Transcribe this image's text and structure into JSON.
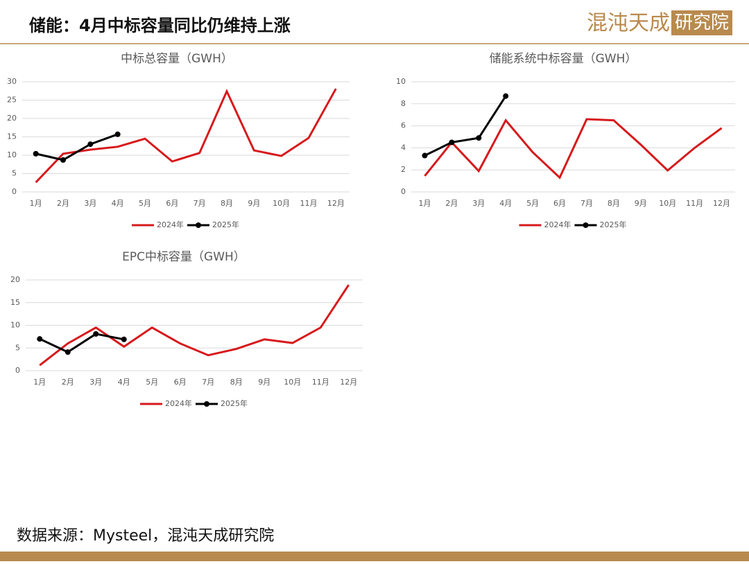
{
  "header": {
    "title": "储能：4月中标容量同比仍维持上涨",
    "logo": "混沌天成",
    "logo_box": "研究院"
  },
  "source": "数据来源：Mysteel，混沌天成研究院",
  "chart_data": [
    {
      "type": "line",
      "title": "中标总容量（GWH）",
      "categories": [
        "1月",
        "2月",
        "3月",
        "4月",
        "5月",
        "6月",
        "7月",
        "8月",
        "9月",
        "10月",
        "11月",
        "12月"
      ],
      "series": [
        {
          "name": "2024年",
          "color": "#d7191c",
          "values": [
            2.6,
            10.4,
            11.5,
            12.3,
            14.5,
            8.3,
            10.6,
            27.4,
            11.3,
            9.8,
            14.7,
            28.1
          ]
        },
        {
          "name": "2025年",
          "color": "#000000",
          "values": [
            10.4,
            8.7,
            13,
            15.7,
            null,
            null,
            null,
            null,
            null,
            null,
            null,
            null
          ]
        }
      ],
      "ylim": [
        0,
        30
      ],
      "yticks": [
        0,
        5,
        10,
        15,
        20,
        25,
        30
      ],
      "grid": true,
      "legend": "bottom"
    },
    {
      "type": "line",
      "title": "储能系统中标容量（GWH）",
      "categories": [
        "1月",
        "2月",
        "3月",
        "4月",
        "5月",
        "6月",
        "7月",
        "8月",
        "9月",
        "10月",
        "11月",
        "12月"
      ],
      "series": [
        {
          "name": "2024年",
          "color": "#d7191c",
          "values": [
            1.45,
            4.5,
            1.9,
            6.5,
            3.6,
            1.3,
            6.6,
            6.5,
            4.3,
            1.95,
            4,
            5.8
          ]
        },
        {
          "name": "2025年",
          "color": "#000000",
          "values": [
            3.3,
            4.5,
            4.9,
            8.7,
            null,
            null,
            null,
            null,
            null,
            null,
            null,
            null
          ]
        }
      ],
      "ylim": [
        0,
        10
      ],
      "yticks": [
        0,
        2,
        4,
        6,
        8,
        10
      ],
      "grid": true,
      "legend": "bottom"
    },
    {
      "type": "line",
      "title": "EPC中标容量（GWH）",
      "categories": [
        "1月",
        "2月",
        "3月",
        "4月",
        "5月",
        "6月",
        "7月",
        "8月",
        "9月",
        "10月",
        "11月",
        "12月"
      ],
      "series": [
        {
          "name": "2024年",
          "color": "#d7191c",
          "values": [
            1.2,
            6,
            9.5,
            5.3,
            9.5,
            6,
            3.4,
            4.8,
            6.9,
            6.1,
            9.5,
            18.9
          ]
        },
        {
          "name": "2025年",
          "color": "#000000",
          "values": [
            7,
            4.1,
            8.1,
            6.9,
            null,
            null,
            null,
            null,
            null,
            null,
            null,
            null
          ]
        }
      ],
      "ylim": [
        0,
        20
      ],
      "yticks": [
        0,
        5,
        10,
        15,
        20
      ],
      "grid": true,
      "legend": "bottom"
    }
  ]
}
